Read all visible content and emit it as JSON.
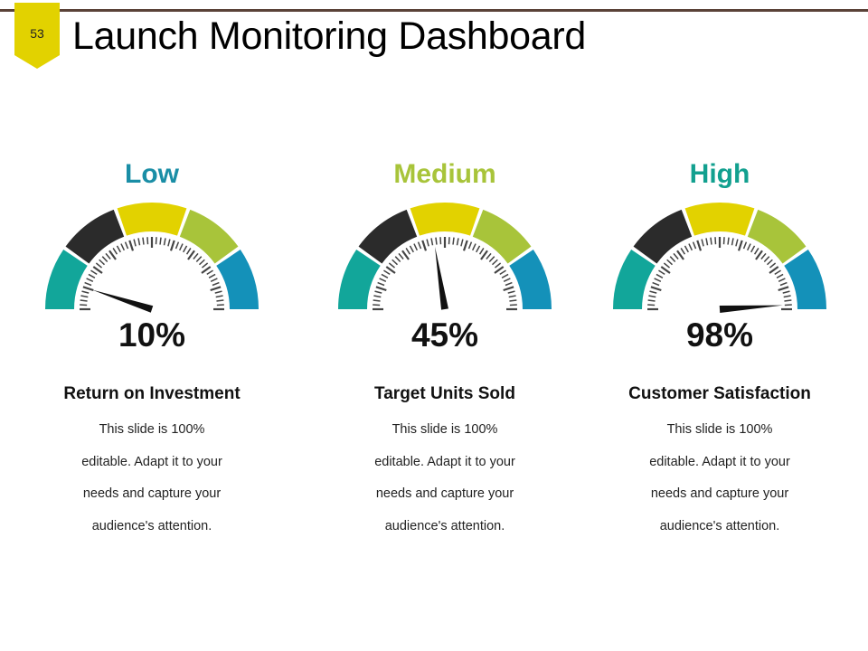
{
  "slide": {
    "number": "53",
    "title": "Launch Monitoring Dashboard"
  },
  "colors": {
    "rule": "#5a4238",
    "badge": "#e2d200",
    "teal": "#12a69a",
    "dark": "#2b2b2b",
    "yellow": "#e2d200",
    "lime": "#a8c43a",
    "blue": "#1491b9",
    "needle": "#111111"
  },
  "gauges": [
    {
      "level": "Low",
      "level_color": "#1a8ea6",
      "percent": 10,
      "value_text": "10%",
      "heading": "Return on Investment",
      "description": [
        "This slide is 100%",
        "editable. Adapt it to your",
        "needs and capture your",
        "audience's attention."
      ]
    },
    {
      "level": "Medium",
      "level_color": "#a8c43a",
      "percent": 45,
      "value_text": "45%",
      "heading": "Target Units Sold",
      "description": [
        "This slide is 100%",
        "editable. Adapt it to your",
        "needs and capture your",
        "audience's attention."
      ]
    },
    {
      "level": "High",
      "level_color": "#12a08f",
      "percent": 98,
      "value_text": "98%",
      "heading": "Customer Satisfaction",
      "description": [
        "This slide is 100%",
        "editable. Adapt it to your",
        "needs and capture your",
        "audience's attention."
      ]
    }
  ]
}
